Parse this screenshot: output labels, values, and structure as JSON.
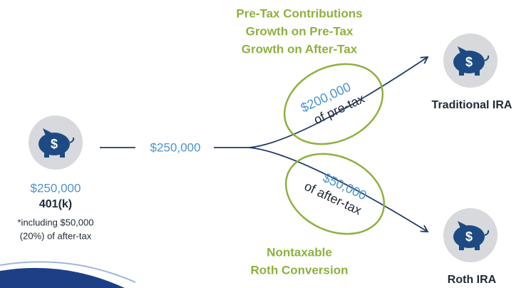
{
  "icon_symbol": "$",
  "source": {
    "amount": "$250,000",
    "label": "401(k)",
    "note": [
      "*including $50,000",
      "(20%) of after-tax"
    ]
  },
  "flow_label": "$250,000",
  "top_branch": {
    "notes": [
      "Pre-Tax Contributions",
      "Growth on Pre-Tax",
      "Growth on After-Tax"
    ],
    "oval": [
      "$200,000",
      "of pre-tax"
    ],
    "destination": "Traditional IRA"
  },
  "bottom_branch": {
    "oval": [
      "$50,000",
      "of after-tax"
    ],
    "notes": [
      "Nontaxable",
      "Roth Conversion"
    ],
    "destination": "Roth IRA"
  }
}
